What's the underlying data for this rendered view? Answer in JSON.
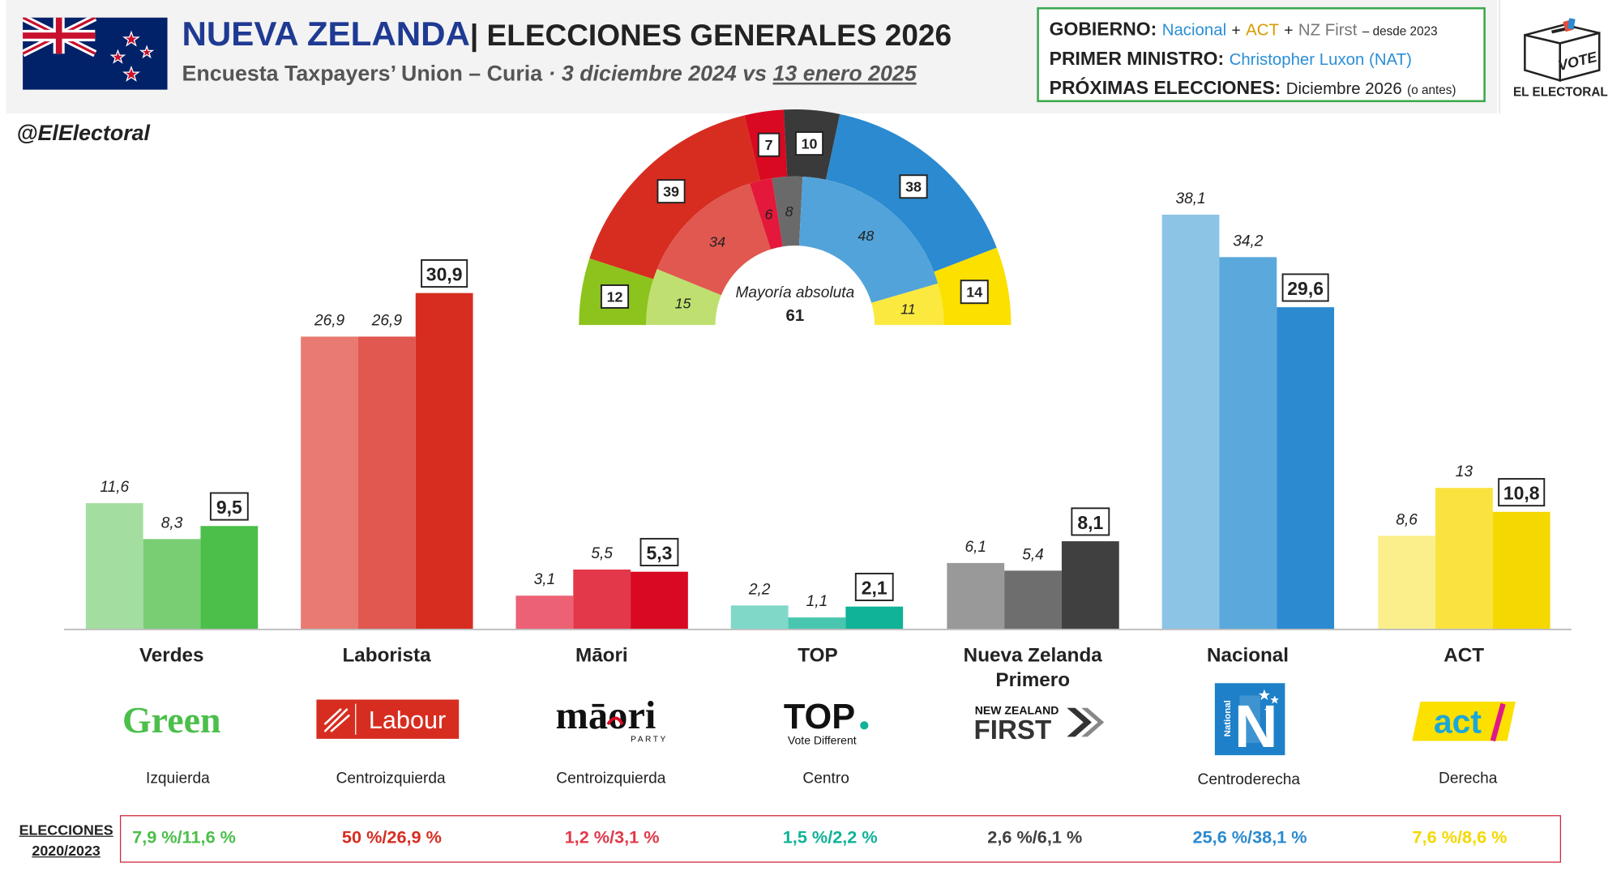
{
  "header": {
    "title_main": "NUEVA ZELANDA",
    "title_sub": "| ELECCIONES GENERALES 2026",
    "poll_source": "Encuesta Taxpayers’ Union – Curia",
    "date_prefix": " · ",
    "date_previous": "3 diciembre 2024",
    "date_vs": " vs ",
    "date_current": "13 enero 2025"
  },
  "info": {
    "gobierno_label": "GOBIERNO:",
    "gob_party1": "Nacional",
    "gob_party2": "ACT",
    "gob_party3": "NZ First",
    "plus": "+",
    "gob_since": "– desde 2023",
    "pm_label": "PRIMER MINISTRO:",
    "pm_value": "Christopher Luxon (NAT)",
    "next_label": "PRÓXIMAS ELECCIONES:",
    "next_value": "Diciembre 2026",
    "next_note": "(o antes)"
  },
  "logo": {
    "vote_text": "VOTE",
    "name": "EL ELECTORAL"
  },
  "handle": "@ElElectoral",
  "chart_data": {
    "type": "bar",
    "title": "",
    "xlabel": "",
    "ylabel": "",
    "ylim": [
      0,
      40
    ],
    "grid": false,
    "legend": "none",
    "categories": [
      "Verdes",
      "Laborista",
      "Māori",
      "TOP",
      "Nueva Zelanda Primero",
      "Nacional",
      "ACT"
    ],
    "series": [
      {
        "values": [
          11.6,
          26.9,
          3.1,
          2.2,
          6.1,
          38.1,
          8.6
        ]
      },
      {
        "values": [
          8.3,
          26.9,
          5.5,
          1.1,
          5.4,
          34.2,
          13
        ]
      },
      {
        "values": [
          9.5,
          30.9,
          5.3,
          2.1,
          8.1,
          29.6,
          10.8
        ]
      }
    ],
    "value_labels": [
      [
        "11,6",
        "8,3",
        "9,5"
      ],
      [
        "26,9",
        "26,9",
        "30,9"
      ],
      [
        "3,1",
        "5,5",
        "5,3"
      ],
      [
        "2,2",
        "1,1",
        "2,1"
      ],
      [
        "6,1",
        "5,4",
        "8,1"
      ],
      [
        "38,1",
        "34,2",
        "29,6"
      ],
      [
        "8,6",
        "13",
        "10,8"
      ]
    ],
    "colors": [
      [
        "#a3dea0",
        "#79ce74",
        "#4bbf4a"
      ],
      [
        "#e87a72",
        "#e0584f",
        "#d72d21"
      ],
      [
        "#ec6174",
        "#e3384a",
        "#d80920"
      ],
      [
        "#7fd8c8",
        "#48c6b0",
        "#10b298"
      ],
      [
        "#999999",
        "#6e6e6e",
        "#404040"
      ],
      [
        "#8cc4e6",
        "#5aa8dc",
        "#2b8ad0"
      ],
      [
        "#fbef8c",
        "#fbe33f",
        "#f5d800"
      ]
    ]
  },
  "hemicycle": {
    "majority_label": "Mayoría absoluta",
    "majority_value": "61",
    "outer": [
      {
        "party": "Verdes",
        "seats": 12,
        "label": "12",
        "color": "#8cc31c"
      },
      {
        "party": "Laborista",
        "seats": 39,
        "label": "39",
        "color": "#d72d21"
      },
      {
        "party": "Māori",
        "seats": 7,
        "label": "7",
        "color": "#d80920"
      },
      {
        "party": "Nueva Zelanda Primero",
        "seats": 10,
        "label": "10",
        "color": "#3a3a3a"
      },
      {
        "party": "Nacional",
        "seats": 38,
        "label": "38",
        "color": "#2b8ad0"
      },
      {
        "party": "ACT",
        "seats": 14,
        "label": "14",
        "color": "#fbe000"
      }
    ],
    "inner": [
      {
        "party": "Verdes",
        "seats": 15,
        "label": "15",
        "color": "#bfe070"
      },
      {
        "party": "Laborista",
        "seats": 34,
        "label": "34",
        "color": "#e0584f"
      },
      {
        "party": "Māori",
        "seats": 6,
        "label": "6",
        "color": "#e3183a"
      },
      {
        "party": "Nueva Zelanda Primero",
        "seats": 8,
        "label": "8",
        "color": "#6a6a6a"
      },
      {
        "party": "Nacional",
        "seats": 48,
        "label": "48",
        "color": "#52a3da"
      },
      {
        "party": "ACT",
        "seats": 11,
        "label": "11",
        "color": "#fbe93f"
      }
    ]
  },
  "parties": [
    {
      "name": "Verdes",
      "logo_text": "Green",
      "ideology": "Izquierda",
      "election": "7,9 %/11,6 %",
      "color": "#4bbf4a"
    },
    {
      "name": "Laborista",
      "logo_text": "Labour",
      "ideology": "Centroizquierda",
      "election": "50 %/26,9 %",
      "color": "#d72d21"
    },
    {
      "name": "Māori",
      "logo_text": "māori",
      "logo_sub": "PARTY",
      "ideology": "Centroizquierda",
      "election": "1,2 %/3,1 %",
      "color": "#e03a4a"
    },
    {
      "name": "TOP",
      "logo_text": "TOP",
      "logo_sub": "Vote Different",
      "ideology": "Centro",
      "election": "1,5 %/2,2 %",
      "color": "#10b298"
    },
    {
      "name": "Nueva Zelanda",
      "name2": "Primero",
      "logo_text": "FIRST",
      "logo_sub": "NEW ZEALAND",
      "ideology": "",
      "election": "2,6 %/6,1 %",
      "color": "#404040"
    },
    {
      "name": "Nacional",
      "logo_text": "National",
      "ideology": "Centroderecha",
      "election": "25,6 %/38,1 %",
      "color": "#2b8ad0"
    },
    {
      "name": "ACT",
      "logo_text": "act",
      "ideology": "Derecha",
      "election": "7,6 %/8,6 %",
      "color": "#f5d800"
    }
  ],
  "elections_label_1": "ELECCIONES",
  "elections_label_2": "2020/2023"
}
